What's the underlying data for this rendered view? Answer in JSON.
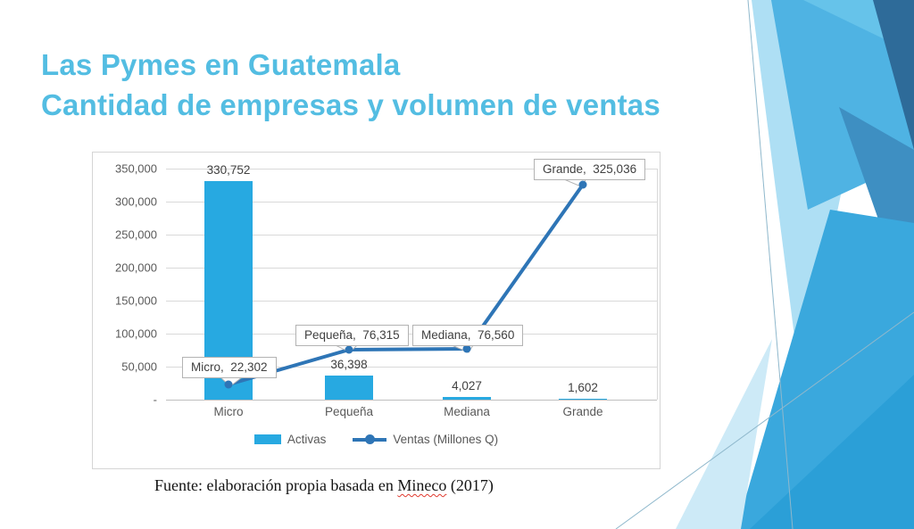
{
  "slide": {
    "title": {
      "line1": "Las Pymes en Guatemala",
      "line2": "Cantidad de empresas y volumen de ventas"
    },
    "source_note": {
      "prefix": "Fuente: elaboración propia basada en ",
      "flagged_word": "Mineco",
      "suffix": " (2017)"
    }
  },
  "chart_data": {
    "type": "bar+line combo",
    "categories": [
      "Micro",
      "Pequeña",
      "Mediana",
      "Grande"
    ],
    "series": [
      {
        "name": "Activas",
        "type": "bar",
        "values": [
          330752,
          36398,
          4027,
          1602
        ],
        "value_labels": [
          "330,752",
          "36,398",
          "4,027",
          "1,602"
        ],
        "color": "#27A9E1"
      },
      {
        "name": "Ventas (Millones Q)",
        "type": "line",
        "values": [
          22302,
          76315,
          76560,
          325036
        ],
        "callout_labels": [
          "Micro,  22,302",
          "Pequeña,  76,315",
          "Mediana,  76,560",
          "Grande,  325,036"
        ],
        "color": "#2E75B6"
      }
    ],
    "y_axis": {
      "min": 0,
      "max": 350000,
      "step": 50000,
      "tick_labels": [
        "350,000",
        "300,000",
        "250,000",
        "200,000",
        "150,000",
        "100,000",
        "50,000",
        "-"
      ]
    },
    "grid": true,
    "legend_position": "bottom"
  },
  "colors": {
    "title": "#53BDE2",
    "bar": "#27A9E1",
    "line": "#2E75B6",
    "gridline": "#D9D9D9",
    "axis_text": "#595959",
    "data_label_text": "#404040",
    "callout_border": "#B3B3B3",
    "decor_navy": "#2E6B99",
    "decor_main_blue": "#3AA8DD",
    "decor_light_blue": "#AEDFF4"
  }
}
